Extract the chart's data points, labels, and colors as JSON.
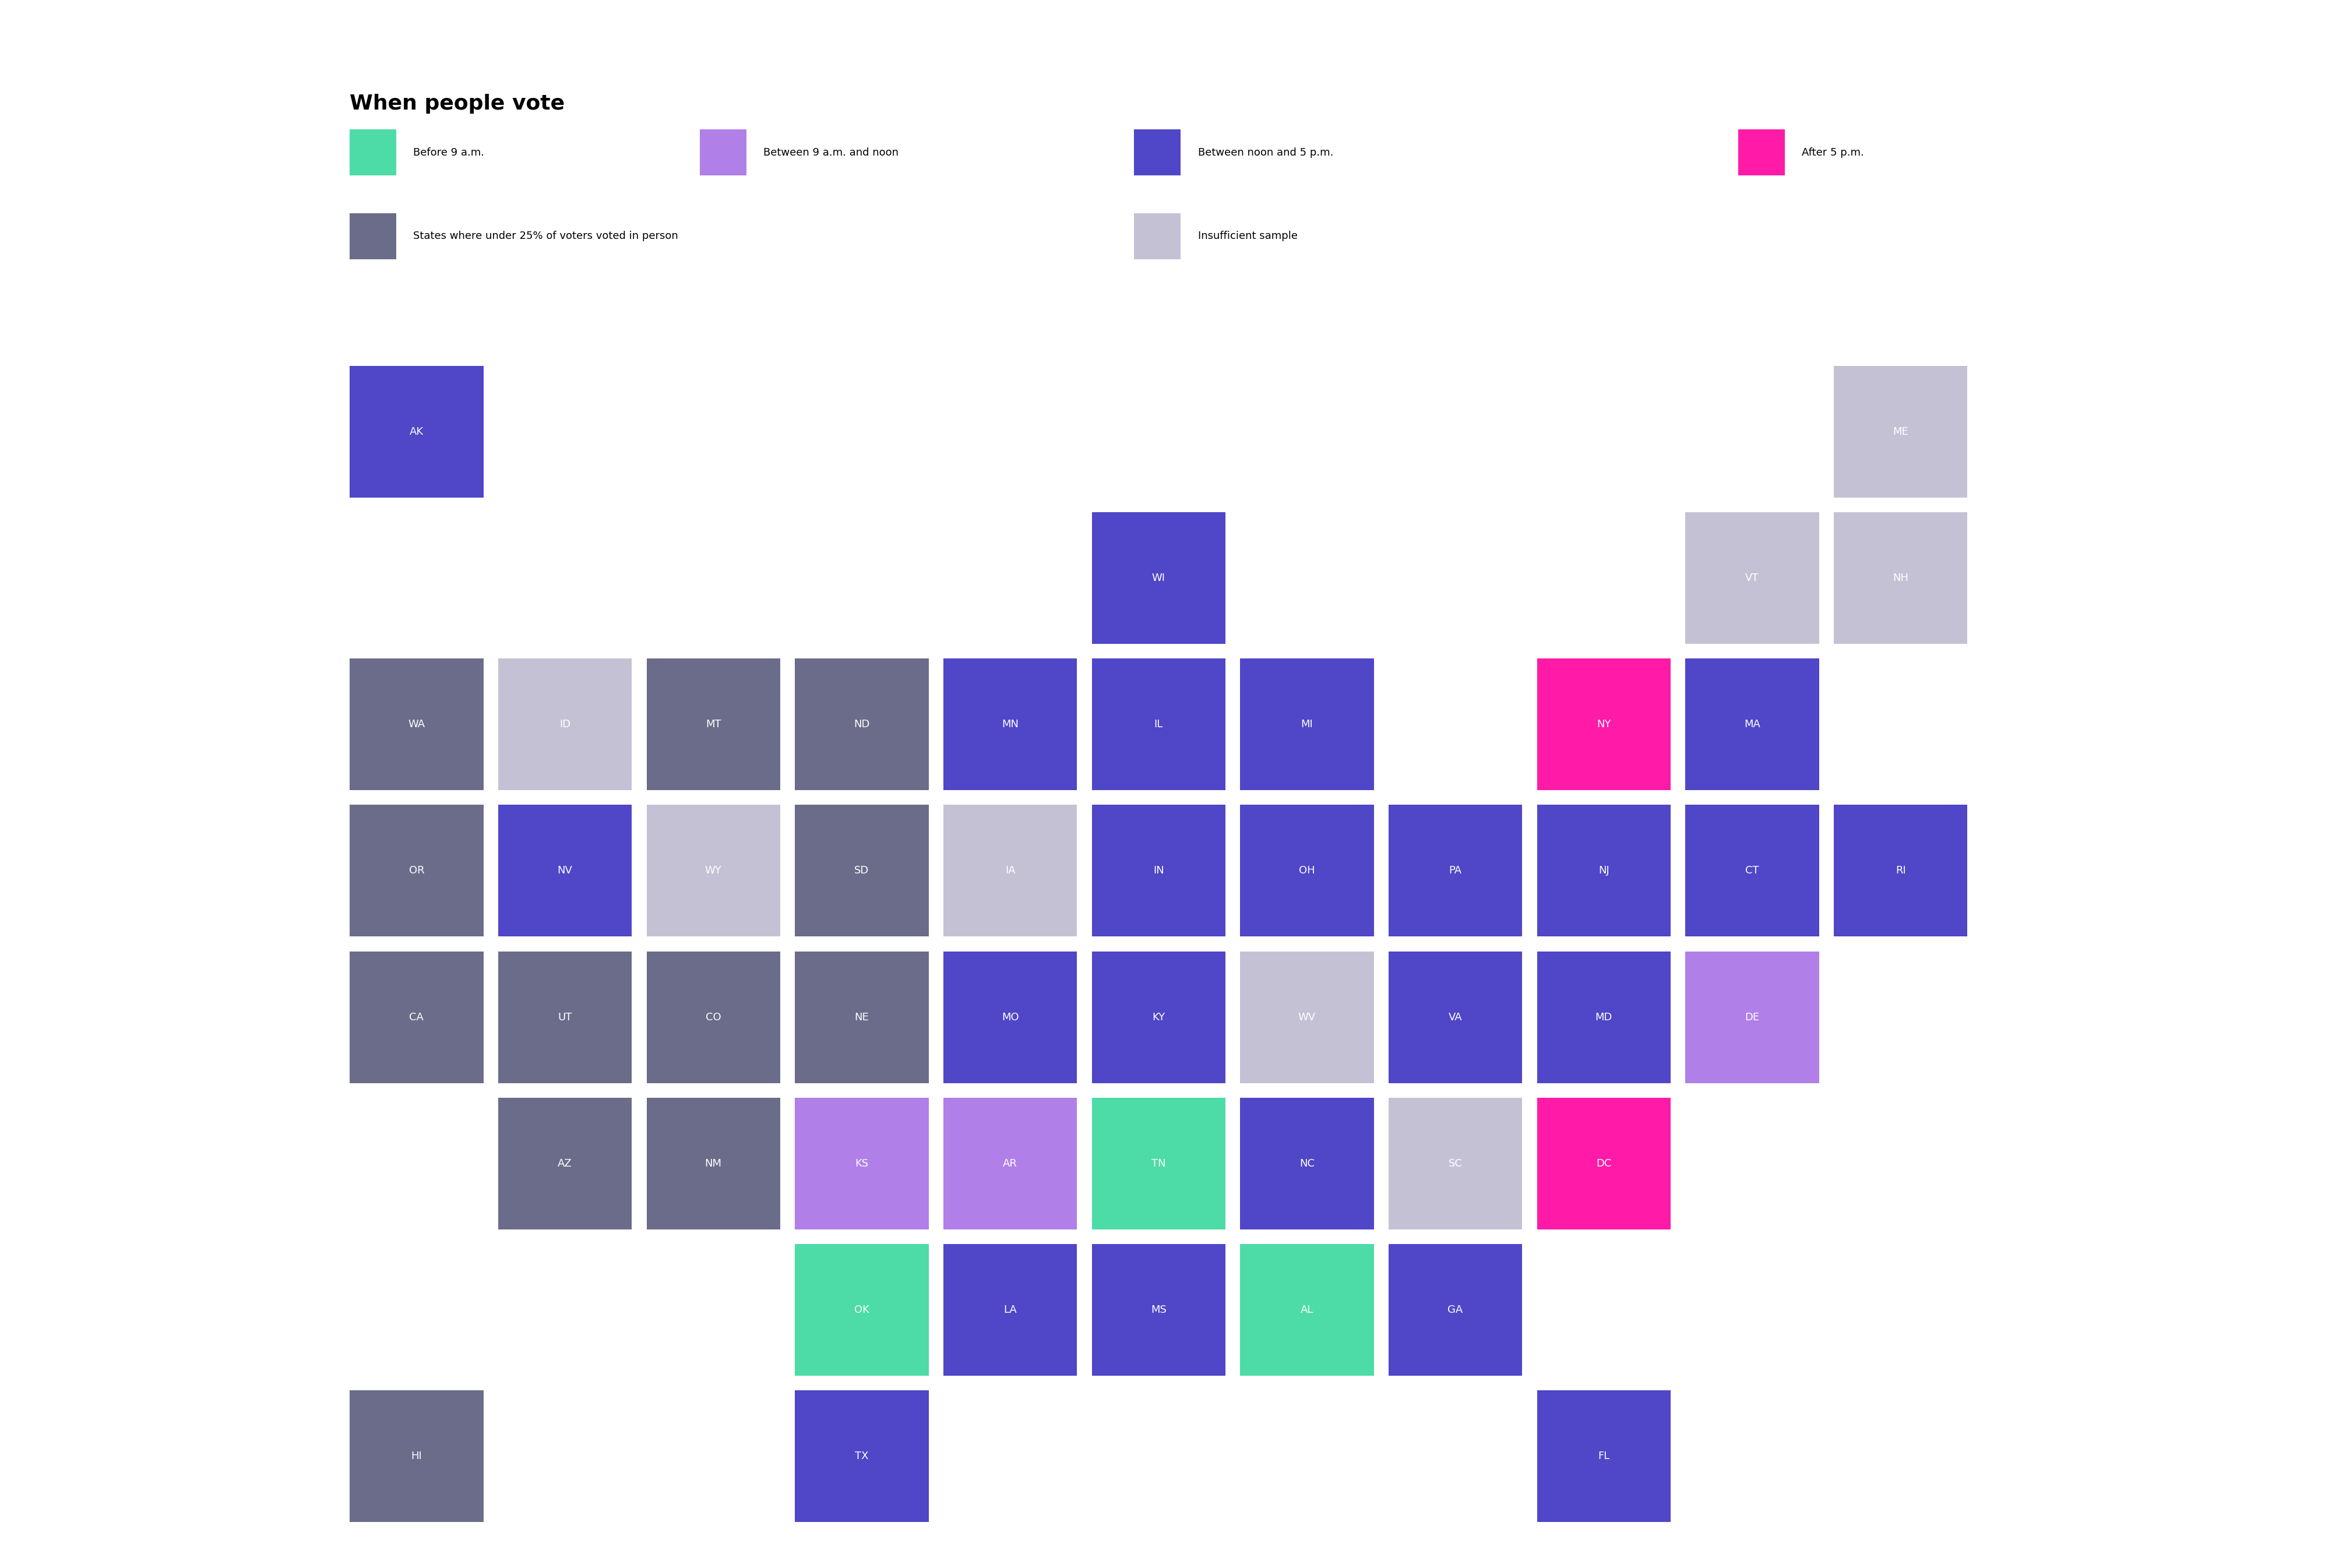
{
  "title": "When people vote",
  "legend": [
    {
      "label": "Before 9 a.m.",
      "color": "#4DDBA8"
    },
    {
      "label": "Between 9 a.m. and noon",
      "color": "#B07FE8"
    },
    {
      "label": "Between noon and 5 p.m.",
      "color": "#4F46C8"
    },
    {
      "label": "After 5 p.m.",
      "color": "#FF1AA8"
    },
    {
      "label": "States where under 25% of voters voted in person",
      "color": "#6B6B8A"
    },
    {
      "label": "Insufficient sample",
      "color": "#C5C1D5"
    }
  ],
  "states": [
    {
      "abbr": "AK",
      "col": 1,
      "row": 0,
      "color": "#4F46C8"
    },
    {
      "abbr": "ME",
      "col": 11,
      "row": 0,
      "color": "#C5C1D5"
    },
    {
      "abbr": "WI",
      "col": 6,
      "row": 1,
      "color": "#4F46C8"
    },
    {
      "abbr": "VT",
      "col": 10,
      "row": 1,
      "color": "#C5C1D5"
    },
    {
      "abbr": "NH",
      "col": 11,
      "row": 1,
      "color": "#C5C1D5"
    },
    {
      "abbr": "WA",
      "col": 1,
      "row": 2,
      "color": "#6B6B8A"
    },
    {
      "abbr": "ID",
      "col": 2,
      "row": 2,
      "color": "#C5C1D5"
    },
    {
      "abbr": "MT",
      "col": 3,
      "row": 2,
      "color": "#6B6B8A"
    },
    {
      "abbr": "ND",
      "col": 4,
      "row": 2,
      "color": "#6B6B8A"
    },
    {
      "abbr": "MN",
      "col": 5,
      "row": 2,
      "color": "#4F46C8"
    },
    {
      "abbr": "IL",
      "col": 6,
      "row": 2,
      "color": "#4F46C8"
    },
    {
      "abbr": "MI",
      "col": 7,
      "row": 2,
      "color": "#4F46C8"
    },
    {
      "abbr": "NY",
      "col": 9,
      "row": 2,
      "color": "#FF1AA8"
    },
    {
      "abbr": "MA",
      "col": 10,
      "row": 2,
      "color": "#4F46C8"
    },
    {
      "abbr": "OR",
      "col": 1,
      "row": 3,
      "color": "#6B6B8A"
    },
    {
      "abbr": "NV",
      "col": 2,
      "row": 3,
      "color": "#4F46C8"
    },
    {
      "abbr": "WY",
      "col": 3,
      "row": 3,
      "color": "#C5C1D5"
    },
    {
      "abbr": "SD",
      "col": 4,
      "row": 3,
      "color": "#6B6B8A"
    },
    {
      "abbr": "IA",
      "col": 5,
      "row": 3,
      "color": "#C5C1D5"
    },
    {
      "abbr": "IN",
      "col": 6,
      "row": 3,
      "color": "#4F46C8"
    },
    {
      "abbr": "OH",
      "col": 7,
      "row": 3,
      "color": "#4F46C8"
    },
    {
      "abbr": "PA",
      "col": 8,
      "row": 3,
      "color": "#4F46C8"
    },
    {
      "abbr": "NJ",
      "col": 9,
      "row": 3,
      "color": "#4F46C8"
    },
    {
      "abbr": "CT",
      "col": 10,
      "row": 3,
      "color": "#4F46C8"
    },
    {
      "abbr": "RI",
      "col": 11,
      "row": 3,
      "color": "#4F46C8"
    },
    {
      "abbr": "CA",
      "col": 1,
      "row": 4,
      "color": "#6B6B8A"
    },
    {
      "abbr": "UT",
      "col": 2,
      "row": 4,
      "color": "#6B6B8A"
    },
    {
      "abbr": "CO",
      "col": 3,
      "row": 4,
      "color": "#6B6B8A"
    },
    {
      "abbr": "NE",
      "col": 4,
      "row": 4,
      "color": "#6B6B8A"
    },
    {
      "abbr": "MO",
      "col": 5,
      "row": 4,
      "color": "#4F46C8"
    },
    {
      "abbr": "KY",
      "col": 6,
      "row": 4,
      "color": "#4F46C8"
    },
    {
      "abbr": "WV",
      "col": 7,
      "row": 4,
      "color": "#C5C1D5"
    },
    {
      "abbr": "VA",
      "col": 8,
      "row": 4,
      "color": "#4F46C8"
    },
    {
      "abbr": "MD",
      "col": 9,
      "row": 4,
      "color": "#4F46C8"
    },
    {
      "abbr": "DE",
      "col": 10,
      "row": 4,
      "color": "#B07FE8"
    },
    {
      "abbr": "AZ",
      "col": 2,
      "row": 5,
      "color": "#6B6B8A"
    },
    {
      "abbr": "NM",
      "col": 3,
      "row": 5,
      "color": "#6B6B8A"
    },
    {
      "abbr": "KS",
      "col": 4,
      "row": 5,
      "color": "#B07FE8"
    },
    {
      "abbr": "AR",
      "col": 5,
      "row": 5,
      "color": "#B07FE8"
    },
    {
      "abbr": "TN",
      "col": 6,
      "row": 5,
      "color": "#4DDBA8"
    },
    {
      "abbr": "NC",
      "col": 7,
      "row": 5,
      "color": "#4F46C8"
    },
    {
      "abbr": "SC",
      "col": 8,
      "row": 5,
      "color": "#C5C1D5"
    },
    {
      "abbr": "DC",
      "col": 9,
      "row": 5,
      "color": "#FF1AA8"
    },
    {
      "abbr": "OK",
      "col": 4,
      "row": 6,
      "color": "#4DDBA8"
    },
    {
      "abbr": "LA",
      "col": 5,
      "row": 6,
      "color": "#4F46C8"
    },
    {
      "abbr": "MS",
      "col": 6,
      "row": 6,
      "color": "#4F46C8"
    },
    {
      "abbr": "AL",
      "col": 7,
      "row": 6,
      "color": "#4DDBA8"
    },
    {
      "abbr": "GA",
      "col": 8,
      "row": 6,
      "color": "#4F46C8"
    },
    {
      "abbr": "HI",
      "col": 1,
      "row": 7,
      "color": "#6B6B8A"
    },
    {
      "abbr": "TX",
      "col": 4,
      "row": 7,
      "color": "#4F46C8"
    },
    {
      "abbr": "FL",
      "col": 9,
      "row": 7,
      "color": "#4F46C8"
    }
  ],
  "background_color": "#FFFFFF",
  "text_color": "#FFFFFF",
  "title_color": "#000000"
}
